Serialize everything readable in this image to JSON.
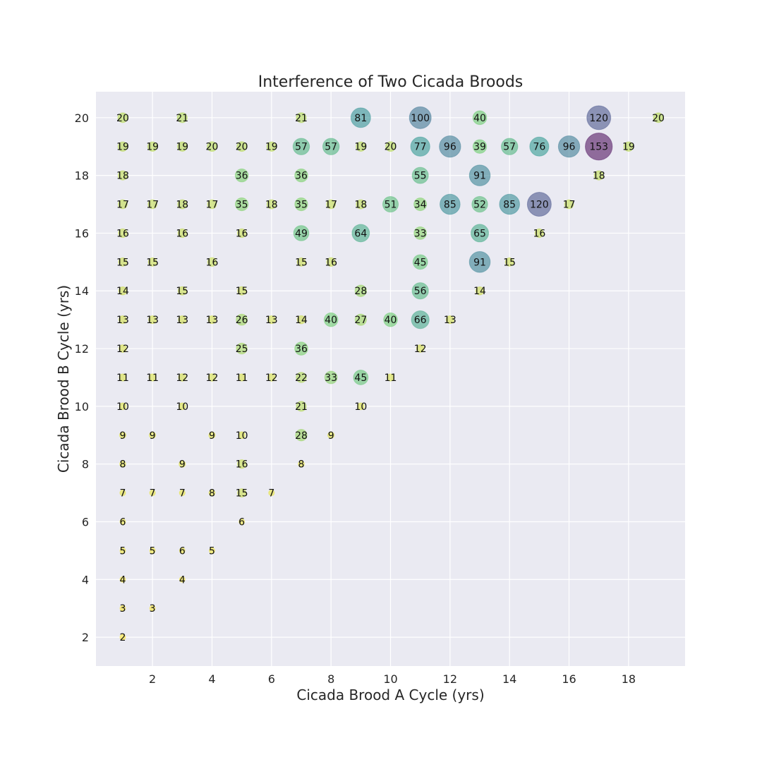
{
  "chart_data": {
    "type": "scatter",
    "title": "Interference of Two Cicada Broods",
    "xlabel": "Cicada Brood A Cycle (yrs)",
    "ylabel": "Cicada Brood B Cycle (yrs)",
    "xlim": [
      0.1,
      19.9
    ],
    "ylim": [
      1,
      20.9
    ],
    "xticks": [
      2,
      4,
      6,
      8,
      10,
      12,
      14,
      16,
      18
    ],
    "yticks": [
      2,
      4,
      6,
      8,
      10,
      12,
      14,
      16,
      18,
      20
    ],
    "grid": true,
    "colormap": "viridis_r",
    "background": "#eaeaf2",
    "points": [
      {
        "x": 1,
        "y": 20,
        "v": 20
      },
      {
        "x": 3,
        "y": 20,
        "v": 21
      },
      {
        "x": 7,
        "y": 20,
        "v": 21
      },
      {
        "x": 9,
        "y": 20,
        "v": 81
      },
      {
        "x": 11,
        "y": 20,
        "v": 100
      },
      {
        "x": 13,
        "y": 20,
        "v": 40
      },
      {
        "x": 17,
        "y": 20,
        "v": 120
      },
      {
        "x": 19,
        "y": 20,
        "v": 20
      },
      {
        "x": 1,
        "y": 19,
        "v": 19
      },
      {
        "x": 2,
        "y": 19,
        "v": 19
      },
      {
        "x": 3,
        "y": 19,
        "v": 19
      },
      {
        "x": 4,
        "y": 19,
        "v": 20
      },
      {
        "x": 5,
        "y": 19,
        "v": 20
      },
      {
        "x": 6,
        "y": 19,
        "v": 19
      },
      {
        "x": 7,
        "y": 19,
        "v": 57
      },
      {
        "x": 8,
        "y": 19,
        "v": 57
      },
      {
        "x": 9,
        "y": 19,
        "v": 19
      },
      {
        "x": 10,
        "y": 19,
        "v": 20
      },
      {
        "x": 11,
        "y": 19,
        "v": 77
      },
      {
        "x": 12,
        "y": 19,
        "v": 96
      },
      {
        "x": 13,
        "y": 19,
        "v": 39
      },
      {
        "x": 14,
        "y": 19,
        "v": 57
      },
      {
        "x": 15,
        "y": 19,
        "v": 76
      },
      {
        "x": 16,
        "y": 19,
        "v": 96
      },
      {
        "x": 17,
        "y": 19,
        "v": 153
      },
      {
        "x": 18,
        "y": 19,
        "v": 19
      },
      {
        "x": 1,
        "y": 18,
        "v": 18
      },
      {
        "x": 5,
        "y": 18,
        "v": 36
      },
      {
        "x": 7,
        "y": 18,
        "v": 36
      },
      {
        "x": 11,
        "y": 18,
        "v": 55
      },
      {
        "x": 13,
        "y": 18,
        "v": 91
      },
      {
        "x": 17,
        "y": 18,
        "v": 18
      },
      {
        "x": 1,
        "y": 17,
        "v": 17
      },
      {
        "x": 2,
        "y": 17,
        "v": 17
      },
      {
        "x": 3,
        "y": 17,
        "v": 18
      },
      {
        "x": 4,
        "y": 17,
        "v": 17
      },
      {
        "x": 5,
        "y": 17,
        "v": 35
      },
      {
        "x": 6,
        "y": 17,
        "v": 18
      },
      {
        "x": 7,
        "y": 17,
        "v": 35
      },
      {
        "x": 8,
        "y": 17,
        "v": 17
      },
      {
        "x": 9,
        "y": 17,
        "v": 18
      },
      {
        "x": 10,
        "y": 17,
        "v": 51
      },
      {
        "x": 11,
        "y": 17,
        "v": 34
      },
      {
        "x": 12,
        "y": 17,
        "v": 85
      },
      {
        "x": 13,
        "y": 17,
        "v": 52
      },
      {
        "x": 14,
        "y": 17,
        "v": 85
      },
      {
        "x": 15,
        "y": 17,
        "v": 120
      },
      {
        "x": 16,
        "y": 17,
        "v": 17
      },
      {
        "x": 1,
        "y": 16,
        "v": 16
      },
      {
        "x": 3,
        "y": 16,
        "v": 16
      },
      {
        "x": 5,
        "y": 16,
        "v": 16
      },
      {
        "x": 7,
        "y": 16,
        "v": 49
      },
      {
        "x": 9,
        "y": 16,
        "v": 64
      },
      {
        "x": 11,
        "y": 16,
        "v": 33
      },
      {
        "x": 13,
        "y": 16,
        "v": 65
      },
      {
        "x": 15,
        "y": 16,
        "v": 16
      },
      {
        "x": 1,
        "y": 15,
        "v": 15
      },
      {
        "x": 2,
        "y": 15,
        "v": 15
      },
      {
        "x": 4,
        "y": 15,
        "v": 16
      },
      {
        "x": 7,
        "y": 15,
        "v": 15
      },
      {
        "x": 8,
        "y": 15,
        "v": 16
      },
      {
        "x": 11,
        "y": 15,
        "v": 45
      },
      {
        "x": 13,
        "y": 15,
        "v": 91
      },
      {
        "x": 14,
        "y": 15,
        "v": 15
      },
      {
        "x": 1,
        "y": 14,
        "v": 14
      },
      {
        "x": 3,
        "y": 14,
        "v": 15
      },
      {
        "x": 5,
        "y": 14,
        "v": 15
      },
      {
        "x": 9,
        "y": 14,
        "v": 28
      },
      {
        "x": 11,
        "y": 14,
        "v": 56
      },
      {
        "x": 13,
        "y": 14,
        "v": 14
      },
      {
        "x": 1,
        "y": 13,
        "v": 13
      },
      {
        "x": 2,
        "y": 13,
        "v": 13
      },
      {
        "x": 3,
        "y": 13,
        "v": 13
      },
      {
        "x": 4,
        "y": 13,
        "v": 13
      },
      {
        "x": 5,
        "y": 13,
        "v": 26
      },
      {
        "x": 6,
        "y": 13,
        "v": 13
      },
      {
        "x": 7,
        "y": 13,
        "v": 14
      },
      {
        "x": 8,
        "y": 13,
        "v": 40
      },
      {
        "x": 9,
        "y": 13,
        "v": 27
      },
      {
        "x": 10,
        "y": 13,
        "v": 40
      },
      {
        "x": 11,
        "y": 13,
        "v": 66
      },
      {
        "x": 12,
        "y": 13,
        "v": 13
      },
      {
        "x": 1,
        "y": 12,
        "v": 12
      },
      {
        "x": 5,
        "y": 12,
        "v": 25
      },
      {
        "x": 7,
        "y": 12,
        "v": 36
      },
      {
        "x": 11,
        "y": 12,
        "v": 12
      },
      {
        "x": 1,
        "y": 11,
        "v": 11
      },
      {
        "x": 2,
        "y": 11,
        "v": 11
      },
      {
        "x": 3,
        "y": 11,
        "v": 12
      },
      {
        "x": 4,
        "y": 11,
        "v": 12
      },
      {
        "x": 5,
        "y": 11,
        "v": 11
      },
      {
        "x": 6,
        "y": 11,
        "v": 12
      },
      {
        "x": 7,
        "y": 11,
        "v": 22
      },
      {
        "x": 8,
        "y": 11,
        "v": 33
      },
      {
        "x": 9,
        "y": 11,
        "v": 45
      },
      {
        "x": 10,
        "y": 11,
        "v": 11
      },
      {
        "x": 1,
        "y": 10,
        "v": 10
      },
      {
        "x": 3,
        "y": 10,
        "v": 10
      },
      {
        "x": 7,
        "y": 10,
        "v": 21
      },
      {
        "x": 9,
        "y": 10,
        "v": 10
      },
      {
        "x": 1,
        "y": 9,
        "v": 9
      },
      {
        "x": 2,
        "y": 9,
        "v": 9
      },
      {
        "x": 4,
        "y": 9,
        "v": 9
      },
      {
        "x": 5,
        "y": 9,
        "v": 10
      },
      {
        "x": 7,
        "y": 9,
        "v": 28
      },
      {
        "x": 8,
        "y": 9,
        "v": 9
      },
      {
        "x": 1,
        "y": 8,
        "v": 8
      },
      {
        "x": 3,
        "y": 8,
        "v": 9
      },
      {
        "x": 5,
        "y": 8,
        "v": 16
      },
      {
        "x": 7,
        "y": 8,
        "v": 8
      },
      {
        "x": 1,
        "y": 7,
        "v": 7
      },
      {
        "x": 2,
        "y": 7,
        "v": 7
      },
      {
        "x": 3,
        "y": 7,
        "v": 7
      },
      {
        "x": 4,
        "y": 7,
        "v": 8
      },
      {
        "x": 5,
        "y": 7,
        "v": 15
      },
      {
        "x": 6,
        "y": 7,
        "v": 7
      },
      {
        "x": 1,
        "y": 6,
        "v": 6
      },
      {
        "x": 5,
        "y": 6,
        "v": 6
      },
      {
        "x": 1,
        "y": 5,
        "v": 5
      },
      {
        "x": 2,
        "y": 5,
        "v": 5
      },
      {
        "x": 3,
        "y": 5,
        "v": 6
      },
      {
        "x": 4,
        "y": 5,
        "v": 5
      },
      {
        "x": 1,
        "y": 4,
        "v": 4
      },
      {
        "x": 3,
        "y": 4,
        "v": 4
      },
      {
        "x": 1,
        "y": 3,
        "v": 3
      },
      {
        "x": 2,
        "y": 3,
        "v": 3
      },
      {
        "x": 1,
        "y": 2,
        "v": 2
      }
    ]
  }
}
